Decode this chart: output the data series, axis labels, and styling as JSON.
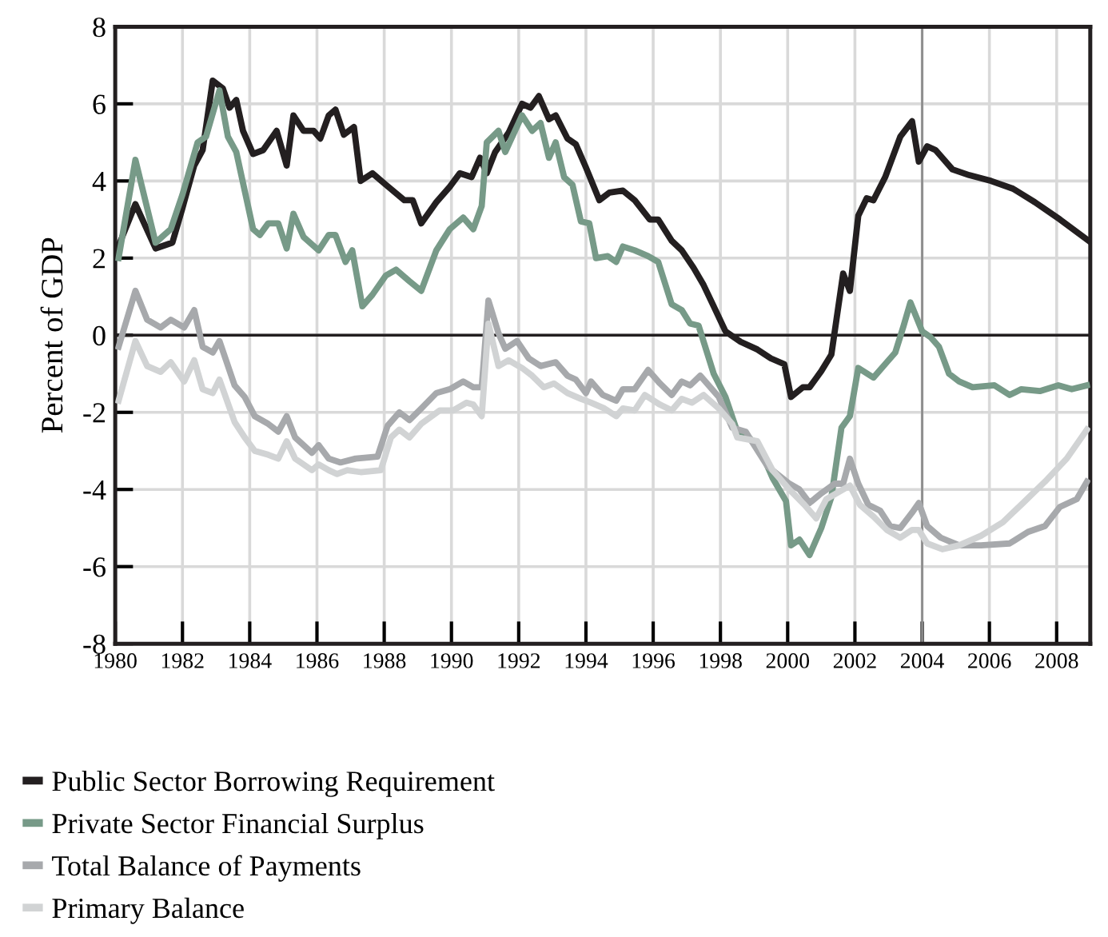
{
  "chart_data": {
    "type": "line",
    "ylabel": "Percent of GDP",
    "xlim": [
      1980,
      2009
    ],
    "ylim": [
      -8,
      8
    ],
    "xticks": [
      1980,
      1982,
      1984,
      1986,
      1988,
      1990,
      1992,
      1994,
      1996,
      1998,
      2000,
      2002,
      2004,
      2006,
      2008
    ],
    "yticks": [
      -8,
      -6,
      -4,
      -2,
      0,
      2,
      4,
      6,
      8
    ],
    "grid": true,
    "legend": "bottom",
    "line_style": "solid",
    "marker": "none",
    "ref_lines": [
      {
        "axis": "y",
        "value": 0,
        "color": "#231f20"
      },
      {
        "axis": "x",
        "value": 2004,
        "color": "#8c8c8c"
      }
    ],
    "series": [
      {
        "name": "Public Sector Borrowing Requirement",
        "color": "#231f20",
        "x": [
          1980.0,
          1980.6,
          1981.2,
          1981.7,
          1982.0,
          1982.35,
          1982.6,
          1982.9,
          1983.2,
          1983.4,
          1983.6,
          1983.8,
          1984.1,
          1984.4,
          1984.8,
          1985.1,
          1985.3,
          1985.6,
          1985.9,
          1986.1,
          1986.35,
          1986.55,
          1986.8,
          1987.1,
          1987.3,
          1987.65,
          1988.05,
          1988.6,
          1988.85,
          1989.1,
          1989.55,
          1989.95,
          1990.25,
          1990.6,
          1990.85,
          1991.05,
          1991.3,
          1991.7,
          1992.1,
          1992.35,
          1992.6,
          1992.9,
          1993.1,
          1993.45,
          1993.7,
          1994.0,
          1994.4,
          1994.7,
          1995.1,
          1995.45,
          1995.9,
          1996.15,
          1996.55,
          1996.85,
          1997.2,
          1997.5,
          1997.8,
          1998.15,
          1998.6,
          1999.1,
          1999.5,
          1999.9,
          2000.1,
          2000.45,
          2000.65,
          2001.0,
          2001.3,
          2001.45,
          2001.65,
          2001.85,
          2002.1,
          2002.35,
          2002.55,
          2002.9,
          2003.35,
          2003.7,
          2003.9,
          2004.15,
          2004.4,
          2004.9,
          2005.4,
          2006.05,
          2006.7,
          2007.35,
          2008.1,
          2008.95
        ],
        "values": [
          2.1,
          3.4,
          2.25,
          2.4,
          3.3,
          4.4,
          4.8,
          6.6,
          6.4,
          5.9,
          6.1,
          5.3,
          4.7,
          4.8,
          5.3,
          4.4,
          5.7,
          5.3,
          5.3,
          5.1,
          5.7,
          5.85,
          5.2,
          5.4,
          4.0,
          4.2,
          3.9,
          3.5,
          3.5,
          2.9,
          3.45,
          3.85,
          4.2,
          4.1,
          4.6,
          4.2,
          4.75,
          5.25,
          6.0,
          5.9,
          6.2,
          5.6,
          5.7,
          5.1,
          4.95,
          4.35,
          3.5,
          3.7,
          3.75,
          3.5,
          3.0,
          3.0,
          2.45,
          2.2,
          1.75,
          1.3,
          0.75,
          0.1,
          -0.17,
          -0.37,
          -0.6,
          -0.75,
          -1.6,
          -1.35,
          -1.35,
          -0.93,
          -0.5,
          0.4,
          1.6,
          1.15,
          3.1,
          3.55,
          3.5,
          4.1,
          5.15,
          5.55,
          4.5,
          4.9,
          4.8,
          4.3,
          4.15,
          4.0,
          3.8,
          3.45,
          3.0,
          2.45
        ]
      },
      {
        "name": "Private Sector Financial Surplus",
        "color": "#779a88",
        "x": [
          1980.1,
          1980.6,
          1981.2,
          1981.65,
          1982.0,
          1982.45,
          1982.7,
          1983.1,
          1983.35,
          1983.6,
          1984.1,
          1984.3,
          1984.55,
          1984.85,
          1985.1,
          1985.3,
          1985.6,
          1986.05,
          1986.35,
          1986.55,
          1986.85,
          1987.05,
          1987.35,
          1987.65,
          1988.05,
          1988.35,
          1988.75,
          1989.1,
          1989.55,
          1989.95,
          1990.35,
          1990.65,
          1990.9,
          1991.05,
          1991.4,
          1991.6,
          1992.1,
          1992.4,
          1992.65,
          1992.9,
          1993.1,
          1993.35,
          1993.6,
          1993.85,
          1994.1,
          1994.3,
          1994.65,
          1994.9,
          1995.1,
          1995.45,
          1995.85,
          1996.15,
          1996.55,
          1996.85,
          1997.1,
          1997.35,
          1997.8,
          1998.15,
          1998.5,
          1999.1,
          1999.55,
          1999.95,
          2000.1,
          2000.35,
          2000.65,
          2001.0,
          2001.3,
          2001.6,
          2001.85,
          2002.1,
          2002.55,
          2002.95,
          2003.2,
          2003.45,
          2003.65,
          2004.0,
          2004.25,
          2004.5,
          2004.8,
          2005.1,
          2005.5,
          2006.15,
          2006.6,
          2006.95,
          2007.5,
          2008.05,
          2008.45,
          2008.9
        ],
        "values": [
          2.0,
          4.55,
          2.4,
          2.75,
          3.65,
          5.0,
          5.15,
          6.35,
          5.15,
          4.75,
          2.75,
          2.6,
          2.9,
          2.9,
          2.25,
          3.15,
          2.55,
          2.2,
          2.6,
          2.6,
          1.9,
          2.2,
          0.75,
          1.05,
          1.55,
          1.7,
          1.4,
          1.15,
          2.2,
          2.75,
          3.05,
          2.75,
          3.35,
          5.0,
          5.3,
          4.75,
          5.7,
          5.3,
          5.5,
          4.6,
          5.0,
          4.1,
          3.9,
          2.95,
          2.9,
          2.0,
          2.05,
          1.9,
          2.3,
          2.2,
          2.05,
          1.9,
          0.8,
          0.65,
          0.3,
          0.25,
          -1.0,
          -1.6,
          -2.5,
          -2.8,
          -3.7,
          -4.3,
          -5.45,
          -5.3,
          -5.7,
          -5.0,
          -4.2,
          -2.4,
          -2.1,
          -0.85,
          -1.1,
          -0.7,
          -0.45,
          0.25,
          0.85,
          0.1,
          -0.05,
          -0.3,
          -1.0,
          -1.2,
          -1.35,
          -1.3,
          -1.55,
          -1.4,
          -1.45,
          -1.3,
          -1.4,
          -1.3
        ]
      },
      {
        "name": "Total Balance of Payments",
        "color": "#a7a9ac",
        "x": [
          1980.1,
          1980.6,
          1980.95,
          1981.35,
          1981.65,
          1982.05,
          1982.35,
          1982.6,
          1982.9,
          1983.1,
          1983.55,
          1983.85,
          1984.15,
          1984.55,
          1984.85,
          1985.1,
          1985.35,
          1985.85,
          1986.05,
          1986.35,
          1986.7,
          1987.15,
          1987.8,
          1988.1,
          1988.45,
          1988.75,
          1989.1,
          1989.55,
          1989.95,
          1990.35,
          1990.65,
          1990.9,
          1991.1,
          1991.4,
          1991.6,
          1991.95,
          1992.3,
          1992.65,
          1993.1,
          1993.45,
          1993.7,
          1994.0,
          1994.15,
          1994.5,
          1994.9,
          1995.1,
          1995.45,
          1995.85,
          1996.2,
          1996.55,
          1996.85,
          1997.1,
          1997.4,
          1997.95,
          1998.35,
          1998.75,
          1999.4,
          2000.05,
          2000.35,
          2000.65,
          2001.0,
          2001.4,
          2001.65,
          2001.85,
          2002.1,
          2002.4,
          2002.75,
          2003.05,
          2003.35,
          2003.7,
          2003.9,
          2004.15,
          2004.55,
          2005.1,
          2005.75,
          2006.6,
          2007.15,
          2007.65,
          2008.1,
          2008.6,
          2008.9
        ],
        "values": [
          -0.3,
          1.15,
          0.4,
          0.2,
          0.4,
          0.2,
          0.65,
          -0.3,
          -0.45,
          -0.15,
          -1.3,
          -1.6,
          -2.1,
          -2.3,
          -2.5,
          -2.1,
          -2.65,
          -3.05,
          -2.85,
          -3.2,
          -3.3,
          -3.2,
          -3.15,
          -2.35,
          -2.0,
          -2.2,
          -1.9,
          -1.5,
          -1.4,
          -1.2,
          -1.35,
          -1.35,
          0.9,
          0.05,
          -0.35,
          -0.15,
          -0.6,
          -0.8,
          -0.7,
          -1.05,
          -1.15,
          -1.5,
          -1.2,
          -1.55,
          -1.7,
          -1.4,
          -1.4,
          -0.9,
          -1.25,
          -1.55,
          -1.2,
          -1.3,
          -1.05,
          -1.6,
          -2.4,
          -2.5,
          -3.4,
          -3.85,
          -4.0,
          -4.35,
          -4.1,
          -3.85,
          -3.85,
          -3.2,
          -3.85,
          -4.4,
          -4.55,
          -4.95,
          -5.0,
          -4.6,
          -4.35,
          -4.95,
          -5.25,
          -5.45,
          -5.45,
          -5.4,
          -5.1,
          -4.95,
          -4.45,
          -4.25,
          -3.8
        ]
      },
      {
        "name": "Primary Balance",
        "color": "#d1d3d4",
        "x": [
          1980.1,
          1980.6,
          1980.95,
          1981.35,
          1981.65,
          1982.05,
          1982.35,
          1982.6,
          1982.9,
          1983.1,
          1983.55,
          1983.85,
          1984.15,
          1984.55,
          1984.85,
          1985.1,
          1985.35,
          1985.85,
          1986.05,
          1986.35,
          1986.6,
          1986.9,
          1987.3,
          1987.9,
          1988.2,
          1988.45,
          1988.75,
          1989.1,
          1989.65,
          1990.05,
          1990.45,
          1990.65,
          1990.9,
          1991.1,
          1991.4,
          1991.7,
          1992.1,
          1992.4,
          1992.75,
          1993.05,
          1993.45,
          1993.85,
          1994.15,
          1994.55,
          1994.9,
          1995.1,
          1995.45,
          1995.75,
          1996.2,
          1996.55,
          1996.85,
          1997.15,
          1997.5,
          1997.95,
          1998.35,
          1998.5,
          1999.1,
          1999.55,
          2000.05,
          2000.5,
          2000.85,
          2001.15,
          2001.55,
          2001.85,
          2002.15,
          2002.55,
          2002.95,
          2003.35,
          2003.7,
          2003.9,
          2004.15,
          2004.6,
          2005.1,
          2005.75,
          2006.4,
          2007.0,
          2007.65,
          2008.3,
          2008.9
        ],
        "values": [
          -1.7,
          -0.15,
          -0.8,
          -0.95,
          -0.7,
          -1.2,
          -0.65,
          -1.4,
          -1.5,
          -1.15,
          -2.25,
          -2.65,
          -3.0,
          -3.1,
          -3.2,
          -2.75,
          -3.2,
          -3.5,
          -3.35,
          -3.5,
          -3.6,
          -3.5,
          -3.55,
          -3.5,
          -2.65,
          -2.45,
          -2.65,
          -2.3,
          -1.95,
          -1.95,
          -1.75,
          -1.8,
          -2.1,
          0.3,
          -0.8,
          -0.65,
          -0.85,
          -1.05,
          -1.35,
          -1.25,
          -1.5,
          -1.65,
          -1.75,
          -1.9,
          -2.1,
          -1.9,
          -1.95,
          -1.55,
          -1.8,
          -1.95,
          -1.65,
          -1.75,
          -1.55,
          -1.9,
          -2.3,
          -2.65,
          -2.75,
          -3.5,
          -4.0,
          -4.4,
          -4.75,
          -4.25,
          -4.05,
          -3.9,
          -4.4,
          -4.7,
          -5.05,
          -5.25,
          -5.05,
          -5.05,
          -5.4,
          -5.55,
          -5.45,
          -5.2,
          -4.85,
          -4.35,
          -3.8,
          -3.2,
          -2.45
        ]
      }
    ]
  }
}
